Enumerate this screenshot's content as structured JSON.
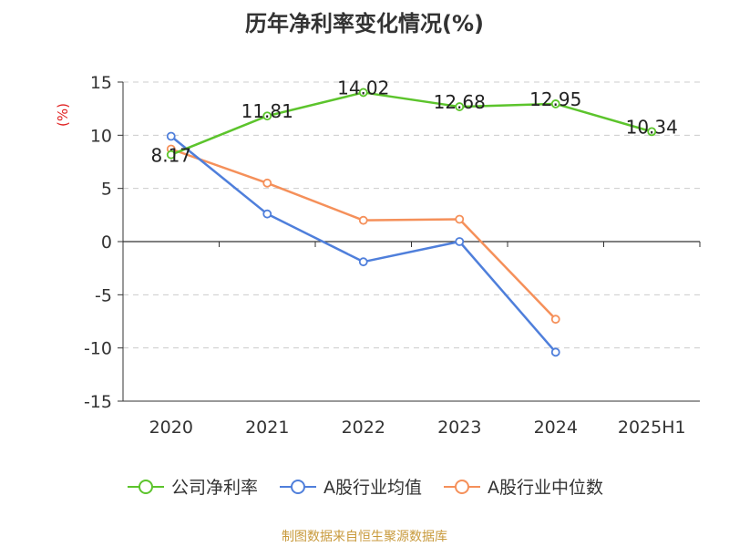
{
  "title": "历年净利率变化情况(%)",
  "source": "制图数据来自恒生聚源数据库",
  "colors": {
    "company": "#5cc42c",
    "industry_avg": "#4f7fdb",
    "industry_median": "#f5905a",
    "grid": "#cccccc",
    "axis": "#333333",
    "unit": "#e02020"
  },
  "chart_data": {
    "type": "line",
    "title": "历年净利率变化情况(%)",
    "xlabel": "",
    "ylabel": "(%)",
    "categories": [
      "2020",
      "2021",
      "2022",
      "2023",
      "2024",
      "2025H1"
    ],
    "ylim": [
      -15,
      15
    ],
    "yticks": [
      15,
      10,
      5,
      0,
      -5,
      -10,
      -15
    ],
    "grid": true,
    "legend_position": "bottom",
    "series": [
      {
        "name": "公司净利率",
        "color_key": "company",
        "values": [
          8.17,
          11.81,
          14.02,
          12.68,
          12.95,
          10.34
        ],
        "labels": [
          "8.17",
          "11.81",
          "14.02",
          "12.68",
          "12.95",
          "10.34"
        ]
      },
      {
        "name": "A股行业均值",
        "color_key": "industry_avg",
        "values": [
          9.9,
          2.6,
          -1.9,
          0.0,
          -10.4,
          null
        ]
      },
      {
        "name": "A股行业中位数",
        "color_key": "industry_median",
        "values": [
          8.7,
          5.5,
          2.0,
          2.1,
          -7.3,
          null
        ]
      }
    ]
  }
}
